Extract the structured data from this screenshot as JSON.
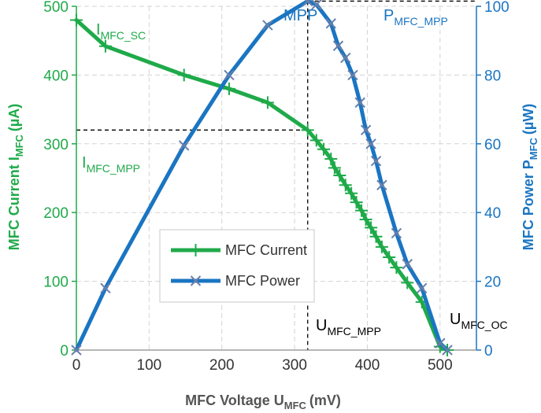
{
  "chart_data": {
    "type": "line",
    "xlabel": "MFC Voltage U",
    "xlabel_sub": "MFC",
    "xlabel_unit": "(mV)",
    "ylabel_left": "MFC Current I",
    "ylabel_left_sub": "MFC",
    "ylabel_left_unit": "(µA)",
    "ylabel_right": "MFC Power P",
    "ylabel_right_sub": "MFC",
    "ylabel_right_unit": "(µW)",
    "xlim": [
      0,
      550
    ],
    "ylim_left": [
      0,
      500
    ],
    "ylim_right": [
      0,
      100
    ],
    "x_ticks": [
      "0",
      "100",
      "200",
      "300",
      "400",
      "500"
    ],
    "y_left_ticks": [
      "0",
      "100",
      "200",
      "300",
      "400",
      "500"
    ],
    "y_right_ticks": [
      "0",
      "20",
      "40",
      "60",
      "80",
      "100"
    ],
    "grid": true,
    "legend_position": "lower-center",
    "colors": {
      "current": "#1faa4a",
      "power": "#1a75c2",
      "annotation": "#000000"
    },
    "series": [
      {
        "name": "MFC Current",
        "axis": "left",
        "marker": "plus",
        "x": [
          0,
          40,
          148,
          210,
          263,
          318,
          330,
          340,
          350,
          355,
          362,
          370,
          378,
          385,
          392,
          398,
          405,
          412,
          420,
          430,
          440,
          455,
          475,
          500,
          510
        ],
        "y": [
          480,
          442,
          400,
          380,
          360,
          320,
          305,
          292,
          278,
          265,
          254,
          240,
          228,
          215,
          203,
          190,
          178,
          165,
          150,
          135,
          120,
          98,
          70,
          5,
          0
        ]
      },
      {
        "name": "MFC Power",
        "axis": "right",
        "marker": "x",
        "x": [
          0,
          40,
          148,
          210,
          263,
          318,
          330,
          350,
          360,
          370,
          380,
          390,
          398,
          405,
          412,
          420,
          440,
          455,
          475,
          500,
          510
        ],
        "y": [
          0,
          18,
          59.5,
          80,
          94.5,
          101.5,
          100.5,
          95,
          88.5,
          85,
          80,
          72,
          64,
          60,
          55,
          48,
          34,
          25,
          18,
          2,
          0
        ]
      }
    ],
    "annotations": {
      "isc_main": "I",
      "isc_sub": "MFC_SC",
      "impp_main": "I",
      "impp_sub": "MFC_MPP",
      "mpp": "MPP",
      "pmpp_main": "P",
      "pmpp_sub": "MFC_MPP",
      "umpp_main": "U",
      "umpp_sub": "MFC_MPP",
      "uoc_main": "U",
      "uoc_sub": "MFC_OC"
    }
  }
}
